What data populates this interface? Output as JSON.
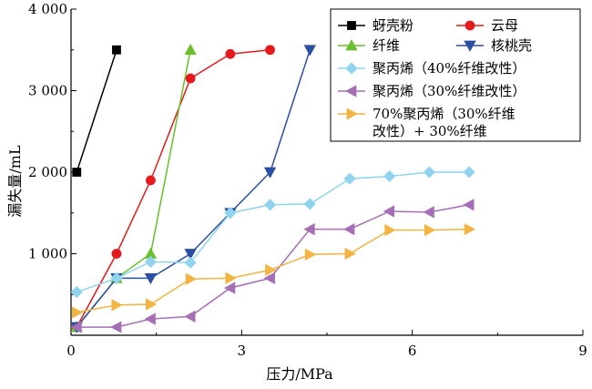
{
  "chart_data": {
    "type": "line",
    "title": "",
    "xlabel": "压力/MPa",
    "ylabel": "漏失量/mL",
    "xlim": [
      0,
      9
    ],
    "ylim": [
      0,
      4000
    ],
    "xticks": [
      0,
      3,
      6,
      9
    ],
    "xtick_labels": [
      "0",
      "3",
      "6",
      "9"
    ],
    "yticks": [
      1000,
      2000,
      3000,
      4000
    ],
    "ytick_labels": [
      "1 000",
      "2 000",
      "3 000",
      "4 000"
    ],
    "grid": false,
    "legend_position": "top-right",
    "series": [
      {
        "name": "蚜壳粉",
        "color": "#000000",
        "marker": "square",
        "points": [
          [
            0.1,
            2000
          ],
          [
            0.8,
            3500
          ]
        ]
      },
      {
        "name": "云母",
        "color": "#e41a1c",
        "marker": "circle",
        "points": [
          [
            0.1,
            100
          ],
          [
            0.8,
            1000
          ],
          [
            1.4,
            1900
          ],
          [
            2.1,
            3150
          ],
          [
            2.8,
            3450
          ],
          [
            3.5,
            3500
          ]
        ]
      },
      {
        "name": "纤维",
        "color": "#6abf2e",
        "marker": "triangle-up",
        "points": [
          [
            0.1,
            100
          ],
          [
            0.8,
            700
          ],
          [
            1.4,
            1000
          ],
          [
            2.1,
            3500
          ]
        ]
      },
      {
        "name": "核桃壳",
        "color": "#2a4ea0",
        "marker": "triangle-down",
        "points": [
          [
            0.1,
            100
          ],
          [
            0.8,
            700
          ],
          [
            1.4,
            700
          ],
          [
            2.1,
            1000
          ],
          [
            2.8,
            1500
          ],
          [
            3.5,
            2000
          ],
          [
            4.2,
            3500
          ]
        ]
      },
      {
        "name": "聚丙烯（40%纤维改性）",
        "color": "#8fd3ef",
        "marker": "diamond",
        "points": [
          [
            0.1,
            530
          ],
          [
            0.8,
            700
          ],
          [
            1.4,
            900
          ],
          [
            2.1,
            890
          ],
          [
            2.8,
            1500
          ],
          [
            3.5,
            1600
          ],
          [
            4.2,
            1610
          ],
          [
            4.9,
            1920
          ],
          [
            5.6,
            1950
          ],
          [
            6.3,
            2000
          ],
          [
            7.0,
            2000
          ]
        ]
      },
      {
        "name": "聚丙烯（30%纤维改性）",
        "color": "#a66fb5",
        "marker": "triangle-left",
        "points": [
          [
            0.1,
            100
          ],
          [
            0.8,
            100
          ],
          [
            1.4,
            200
          ],
          [
            2.1,
            230
          ],
          [
            2.8,
            580
          ],
          [
            3.5,
            700
          ],
          [
            4.2,
            1300
          ],
          [
            4.9,
            1300
          ],
          [
            5.6,
            1520
          ],
          [
            6.3,
            1510
          ],
          [
            7.0,
            1600
          ]
        ]
      },
      {
        "name": "70%聚丙烯（30%纤维改性）+30%纤维",
        "legend_lines": [
          "70%聚丙烯（30%纤维",
          "改性）+ 30%纤维"
        ],
        "color": "#f2b443",
        "marker": "triangle-right",
        "points": [
          [
            0.1,
            280
          ],
          [
            0.8,
            370
          ],
          [
            1.4,
            380
          ],
          [
            2.1,
            690
          ],
          [
            2.8,
            700
          ],
          [
            3.5,
            800
          ],
          [
            4.2,
            990
          ],
          [
            4.9,
            1000
          ],
          [
            5.6,
            1290
          ],
          [
            6.3,
            1290
          ],
          [
            7.0,
            1300
          ]
        ]
      }
    ]
  }
}
